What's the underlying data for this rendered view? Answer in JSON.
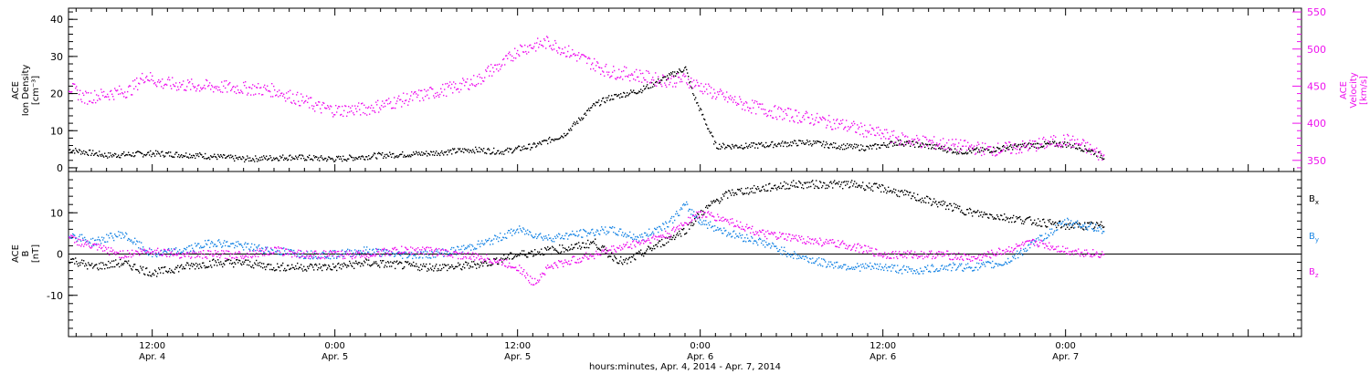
{
  "xaxis": {
    "title": "hours:minutes, Apr.  4, 2014 - Apr.  7, 2014",
    "start_hour": 6.5,
    "end_hour": 87.5,
    "ticks": [
      {
        "hour": 12,
        "time": "12:00",
        "date": "Apr. 4"
      },
      {
        "hour": 24,
        "time": "0:00",
        "date": "Apr. 5"
      },
      {
        "hour": 36,
        "time": "12:00",
        "date": "Apr. 5"
      },
      {
        "hour": 48,
        "time": "0:00",
        "date": "Apr. 6"
      },
      {
        "hour": 60,
        "time": "12:00",
        "date": "Apr. 6"
      },
      {
        "hour": 72,
        "time": "0:00",
        "date": "Apr. 7"
      }
    ]
  },
  "panels": {
    "top": {
      "left_label": [
        "ACE",
        "Ion Density",
        "[cm⁻³]"
      ],
      "right_label": [
        "ACE",
        "Velocity",
        "[km/s]"
      ]
    },
    "bottom": {
      "left_label": [
        "ACE",
        "B",
        "[nT]"
      ],
      "legend": [
        {
          "name": "B",
          "sub": "x",
          "color": "#000000"
        },
        {
          "name": "B",
          "sub": "y",
          "color": "#1e88e5"
        },
        {
          "name": "B",
          "sub": "z",
          "color": "#ee11ee"
        }
      ]
    }
  },
  "chart_data": [
    {
      "type": "scatter",
      "title": "",
      "ylabel": "ACE Ion Density [cm-3]",
      "ylim": [
        -1,
        43
      ],
      "yticks": [
        0,
        10,
        20,
        30,
        40
      ],
      "y2label": "ACE Velocity [km/s]",
      "y2lim": [
        335,
        555
      ],
      "y2ticks": [
        350,
        400,
        450,
        500,
        550
      ],
      "series": [
        {
          "name": "Ion Density",
          "axis": "left",
          "color": "#000000",
          "x": [
            6.5,
            9,
            12,
            15,
            18,
            21,
            24,
            27,
            30,
            33,
            35,
            37,
            39,
            41,
            42,
            44,
            45,
            46,
            47,
            47.5,
            49,
            51,
            53,
            55,
            57,
            59,
            61,
            63,
            65,
            67,
            69,
            71,
            72,
            73.5,
            74.5
          ],
          "y": [
            5,
            3.5,
            4,
            3.5,
            2.5,
            3,
            2.5,
            3.5,
            4,
            5,
            4.5,
            6,
            9,
            17,
            19,
            21,
            23,
            25,
            27,
            20,
            6,
            6,
            6.5,
            7,
            6,
            5.5,
            7,
            6,
            4.5,
            5,
            6,
            6.5,
            6.5,
            5,
            3
          ]
        },
        {
          "name": "Velocity",
          "axis": "right",
          "color": "#ee11ee",
          "x": [
            6.5,
            7.5,
            9,
            10.5,
            11.5,
            12.5,
            14,
            16,
            18,
            20,
            22,
            23,
            24,
            26,
            28,
            30,
            32,
            33.5,
            34,
            35,
            36,
            37,
            38,
            39,
            40,
            41,
            42,
            43,
            44,
            45,
            46,
            47,
            48,
            49,
            51,
            53,
            55,
            57,
            59,
            61,
            63,
            65,
            67,
            69,
            71,
            72,
            73,
            74.5
          ],
          "y": [
            450,
            435,
            440,
            445,
            465,
            455,
            452,
            450,
            448,
            445,
            430,
            422,
            418,
            420,
            430,
            440,
            450,
            460,
            470,
            480,
            500,
            505,
            510,
            500,
            490,
            480,
            470,
            468,
            465,
            460,
            458,
            460,
            450,
            440,
            425,
            415,
            408,
            400,
            390,
            380,
            375,
            370,
            365,
            368,
            375,
            378,
            372,
            355
          ]
        }
      ]
    },
    {
      "type": "scatter",
      "title": "",
      "ylabel": "ACE B [nT]",
      "ylim": [
        -20,
        20
      ],
      "yticks": [
        -10,
        0,
        10
      ],
      "zero_line": true,
      "series": [
        {
          "name": "Bx",
          "color": "#000000",
          "x": [
            6.5,
            8,
            10,
            12,
            14,
            16,
            18,
            20,
            22,
            24,
            26,
            28,
            30,
            32,
            34,
            36,
            38,
            40,
            41,
            42,
            43,
            44,
            45,
            46,
            47,
            48,
            49,
            50,
            52,
            54,
            56,
            58,
            60,
            62,
            64,
            66,
            68,
            70,
            72,
            74.5
          ],
          "y": [
            -1,
            -3,
            -2,
            -4.5,
            -3,
            -2,
            -2,
            -3,
            -3,
            -3,
            -2,
            -2.5,
            -3,
            -3,
            -2,
            0,
            1,
            2,
            3,
            0,
            -2,
            0,
            2,
            4,
            6,
            10,
            13,
            15,
            16,
            17,
            17,
            17,
            16,
            14,
            12,
            10,
            9,
            8,
            7,
            7
          ]
        },
        {
          "name": "By",
          "color": "#1e88e5",
          "x": [
            6.5,
            8,
            10,
            12,
            14,
            16,
            18,
            20,
            22,
            24,
            26,
            28,
            30,
            32,
            34,
            36,
            38,
            40,
            42,
            44,
            46,
            47,
            48,
            50,
            52,
            54,
            56,
            58,
            60,
            62,
            64,
            66,
            68,
            70,
            72,
            74.5
          ],
          "y": [
            5,
            3,
            5,
            0,
            1,
            3,
            2,
            1,
            0,
            0,
            1,
            0,
            0,
            1,
            3,
            6,
            4,
            5,
            6,
            4,
            8,
            12,
            8,
            5,
            3,
            0,
            -2,
            -3,
            -3,
            -4,
            -3,
            -3,
            -2,
            3,
            8,
            6
          ]
        },
        {
          "name": "Bz",
          "color": "#ee11ee",
          "x": [
            6.5,
            8,
            10,
            12,
            14,
            16,
            18,
            20,
            22,
            24,
            26,
            28,
            30,
            32,
            34,
            36,
            37,
            38,
            40,
            42,
            44,
            46,
            47,
            48,
            50,
            52,
            54,
            56,
            58,
            60,
            62,
            64,
            66,
            68,
            70,
            72,
            74.5
          ],
          "y": [
            4,
            2,
            0,
            1,
            0,
            0,
            0,
            1,
            0,
            0,
            0,
            1,
            1,
            0,
            -1,
            -3,
            -7,
            -3,
            -1,
            1,
            3,
            5,
            8,
            10,
            8,
            5,
            4,
            3,
            2,
            0,
            0,
            0,
            -1,
            1,
            3,
            1,
            0
          ]
        }
      ]
    }
  ]
}
